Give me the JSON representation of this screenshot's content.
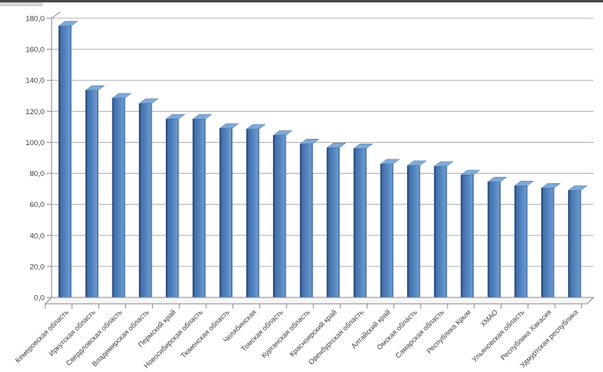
{
  "page": {
    "background_color": "#ffffff",
    "top_border_color": "#474747"
  },
  "chart_data": {
    "type": "bar",
    "title": "",
    "xlabel": "",
    "ylabel": "",
    "categories": [
      "Кемеровская область",
      "Иркутская область",
      "Свердловская область",
      "Владимирская область",
      "Пермский край",
      "Новосибирская область",
      "Тюменская область",
      "Челябинская",
      "Томская область",
      "Курганская область",
      "Красноярский край",
      "Оренбургская область",
      "Алтайский край",
      "Омская область",
      "Самарская область",
      "Республика Крым",
      "ХМАО",
      "Ульяновская область",
      "Республика Хакасия",
      "Удмуртская республика"
    ],
    "values": [
      175,
      133.5,
      128.5,
      125,
      115,
      115,
      109,
      108.5,
      104.5,
      99,
      96.5,
      96,
      86,
      85,
      84.5,
      79,
      74.5,
      72,
      70.5,
      69
    ],
    "ylim": [
      0,
      180
    ],
    "ytick_step": 20,
    "ytick_labels": [
      "0,0",
      "20,0",
      "40,0",
      "60,0",
      "80,0",
      "100,0",
      "120,0",
      "140,0",
      "160,0",
      "180,0"
    ],
    "grid": true,
    "legend": false,
    "style_3d": true,
    "colors": {
      "bar_face": "#4e80bc",
      "bar_edge_dark": "#2b4d7b",
      "bar_edge_light": "#6d9bce",
      "bar_outline": "#3a6496",
      "bar_top": "#7fa9d5",
      "gridline": "#b0b0b4",
      "axis": "#8a8a8a",
      "label": "#3f3f3f",
      "floor_fill": "#f7f7f7"
    }
  }
}
